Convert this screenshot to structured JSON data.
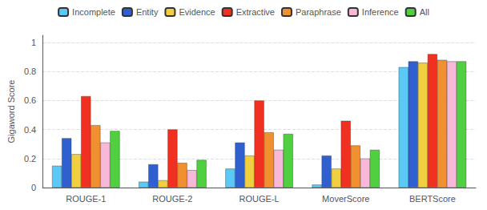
{
  "chart_data": {
    "type": "bar",
    "categories": [
      "ROUGE-1",
      "ROUGE-2",
      "ROUGE-L",
      "MoverScore",
      "BERTScore"
    ],
    "series": [
      {
        "name": "Incomplete",
        "color": "#5bc8f5",
        "values": [
          0.15,
          0.04,
          0.13,
          0.02,
          0.83
        ]
      },
      {
        "name": "Entity",
        "color": "#3060d0",
        "values": [
          0.34,
          0.16,
          0.31,
          0.22,
          0.87
        ]
      },
      {
        "name": "Evidence",
        "color": "#f0d040",
        "values": [
          0.23,
          0.05,
          0.22,
          0.13,
          0.86
        ]
      },
      {
        "name": "Extractive",
        "color": "#f03020",
        "values": [
          0.63,
          0.4,
          0.6,
          0.46,
          0.92
        ]
      },
      {
        "name": "Paraphrase",
        "color": "#f09030",
        "values": [
          0.43,
          0.17,
          0.38,
          0.29,
          0.88
        ]
      },
      {
        "name": "Inference",
        "color": "#f8b8d8",
        "values": [
          0.31,
          0.12,
          0.26,
          0.2,
          0.87
        ]
      },
      {
        "name": "All",
        "color": "#50d040",
        "values": [
          0.39,
          0.19,
          0.37,
          0.26,
          0.87
        ]
      }
    ],
    "ylabel": "Gigaword Score",
    "ylim": [
      0,
      1.05
    ],
    "yticks": [
      0,
      0.2,
      0.4,
      0.6,
      0.8,
      1
    ],
    "grid": true,
    "legend": "top"
  }
}
